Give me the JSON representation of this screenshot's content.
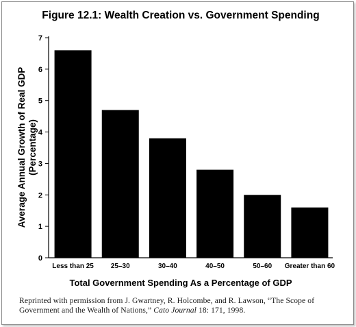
{
  "chart_data": {
    "type": "bar",
    "title": "Figure 12.1: Wealth Creation vs. Government Spending",
    "xlabel": "Total Government Spending As a Percentage of GDP",
    "ylabel_line1": "Average Annual Growth of Real GDP",
    "ylabel_line2": "(Percentage)",
    "categories": [
      "Less than 25",
      "25–30",
      "30–40",
      "40–50",
      "50–60",
      "Greater than 60"
    ],
    "values": [
      6.6,
      4.7,
      3.8,
      2.8,
      2.0,
      1.6
    ],
    "yticks": [
      "0",
      "1",
      "2",
      "3",
      "4",
      "5",
      "6",
      "7"
    ],
    "ylim": [
      0,
      7
    ],
    "grid": false,
    "bar_color": "#000000"
  },
  "caption": {
    "text_before": "Reprinted with permission from J. Gwartney, R. Holcombe, and R. Lawson, “The Scope of Government and the Wealth of Nations,” ",
    "journal": "Cato Journal",
    "text_after": " 18: 171, 1998."
  }
}
